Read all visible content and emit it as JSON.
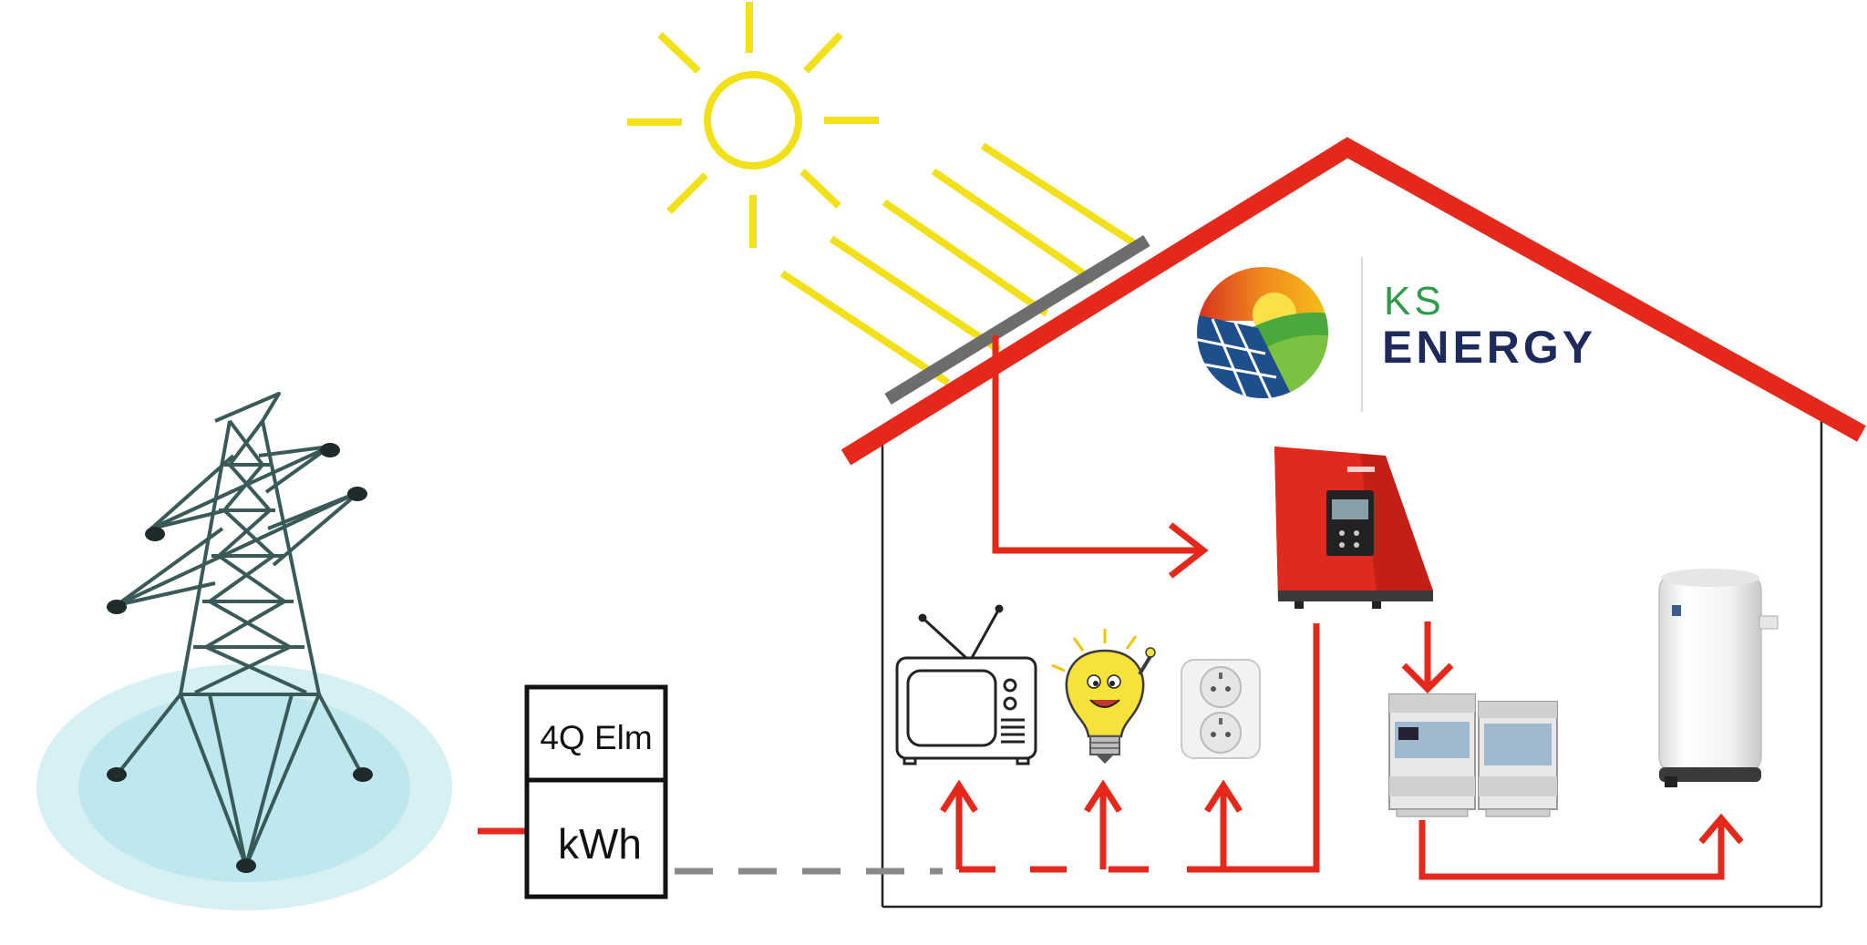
{
  "meter": {
    "top_label": "4Q Elm",
    "bottom_label": "kWh"
  },
  "logo": {
    "line1": "KS",
    "line2": "ENERGY"
  },
  "colors": {
    "roof_red": "#e4291c",
    "sun_yellow": "#f2e11a",
    "panel_gray": "#6d6d6d",
    "pylon_teal": "#3a5a5a",
    "ground_aqua": "#bfe8ee",
    "logo_green": "#2e9a4a",
    "logo_navy": "#1f2a5c",
    "inverter_red": "#e0291f",
    "dash_gray": "#8a8a8a"
  },
  "icons": {
    "sun": "sun-icon",
    "pylon": "power-pylon-icon",
    "inverter": "solar-inverter-icon",
    "tv": "television-icon",
    "bulb": "light-bulb-icon",
    "socket": "power-socket-icon",
    "wattrouter": "wattrouter-controller-icon",
    "boiler": "water-heater-icon"
  }
}
